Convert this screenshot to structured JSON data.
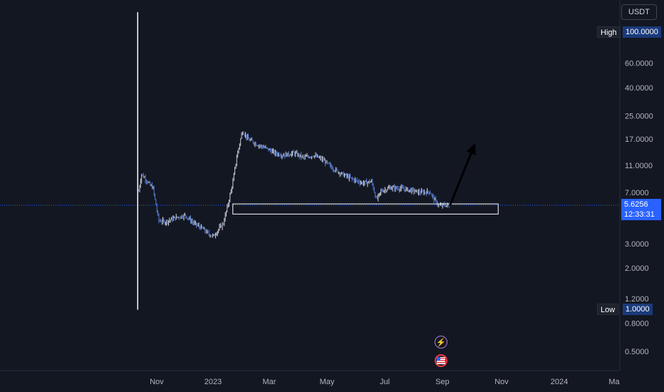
{
  "currency_label": "USDT",
  "high_label": "High",
  "high_value": "100.0000",
  "low_label": "Low",
  "low_value": "1.0000",
  "last_price": "5.6256",
  "countdown": "12:33:31",
  "icons": {
    "lightning": "lightning-icon",
    "flag": "us-flag-icon"
  },
  "colors": {
    "background": "#131722",
    "candle": "#5b7fd6",
    "price_line": "#2962ff",
    "annotation": "#ffffff",
    "arrow": "#000000"
  },
  "chart_data": {
    "type": "candlestick",
    "title": "",
    "y_scale": "log",
    "ylim": [
      0.4,
      140
    ],
    "y_ticks": [
      "100.0000",
      "60.0000",
      "40.0000",
      "25.0000",
      "17.0000",
      "11.0000",
      "7.0000",
      "5.6256",
      "3.0000",
      "2.0000",
      "1.2000",
      "1.0000",
      "0.8000",
      "0.5000"
    ],
    "x_ticks": [
      "Nov",
      "2023",
      "Mar",
      "May",
      "Jul",
      "Sep",
      "Nov",
      "2024",
      "Ma"
    ],
    "series": [
      {
        "x": [
          "2022-10-13",
          "2022-10-16",
          "2022-10-20",
          "2022-10-25",
          "2022-10-28",
          "2022-11-03",
          "2022-11-10",
          "2022-11-20",
          "2022-12-01",
          "2022-12-10",
          "2022-12-18",
          "2022-12-26",
          "2022-12-31",
          "2023-01-05",
          "2023-01-10",
          "2023-01-15",
          "2023-01-20",
          "2023-01-24",
          "2023-01-30",
          "2023-02-05",
          "2023-02-15",
          "2023-02-25",
          "2023-03-05",
          "2023-03-15",
          "2023-03-25",
          "2023-04-05",
          "2023-04-15",
          "2023-04-25",
          "2023-05-05",
          "2023-05-15",
          "2023-05-25",
          "2023-06-05",
          "2023-06-15",
          "2023-06-20",
          "2023-06-25",
          "2023-07-05",
          "2023-07-15",
          "2023-07-25",
          "2023-08-05",
          "2023-08-15",
          "2023-08-20",
          "2023-08-25",
          "2023-08-30",
          "2023-09-05"
        ],
        "y": [
          7.2,
          9.5,
          8.8,
          7.9,
          7.6,
          4.4,
          4.3,
          4.6,
          4.8,
          4.2,
          3.9,
          3.5,
          3.4,
          3.8,
          4.2,
          5.8,
          8.3,
          12.5,
          19.5,
          17.0,
          15.5,
          14.5,
          13.5,
          13.0,
          13.5,
          12.5,
          13.0,
          12.0,
          10.5,
          9.5,
          8.8,
          8.2,
          8.4,
          6.2,
          7.2,
          7.6,
          7.5,
          7.3,
          7.0,
          7.1,
          6.2,
          5.6,
          5.7,
          5.63
        ]
      }
    ],
    "annotations": [
      {
        "type": "rectangle",
        "from": "2023-01-20",
        "to": "2023-10-26",
        "price_top": 5.8,
        "price_bottom": 4.9
      },
      {
        "type": "arrow",
        "from_date": "2023-09-05",
        "from_price": 5.6,
        "to_date": "2023-10-02",
        "to_price": 16.0
      },
      {
        "type": "vertical_line",
        "date": "2022-10-12",
        "price_top": 140,
        "price_bottom": 1.0
      }
    ]
  }
}
